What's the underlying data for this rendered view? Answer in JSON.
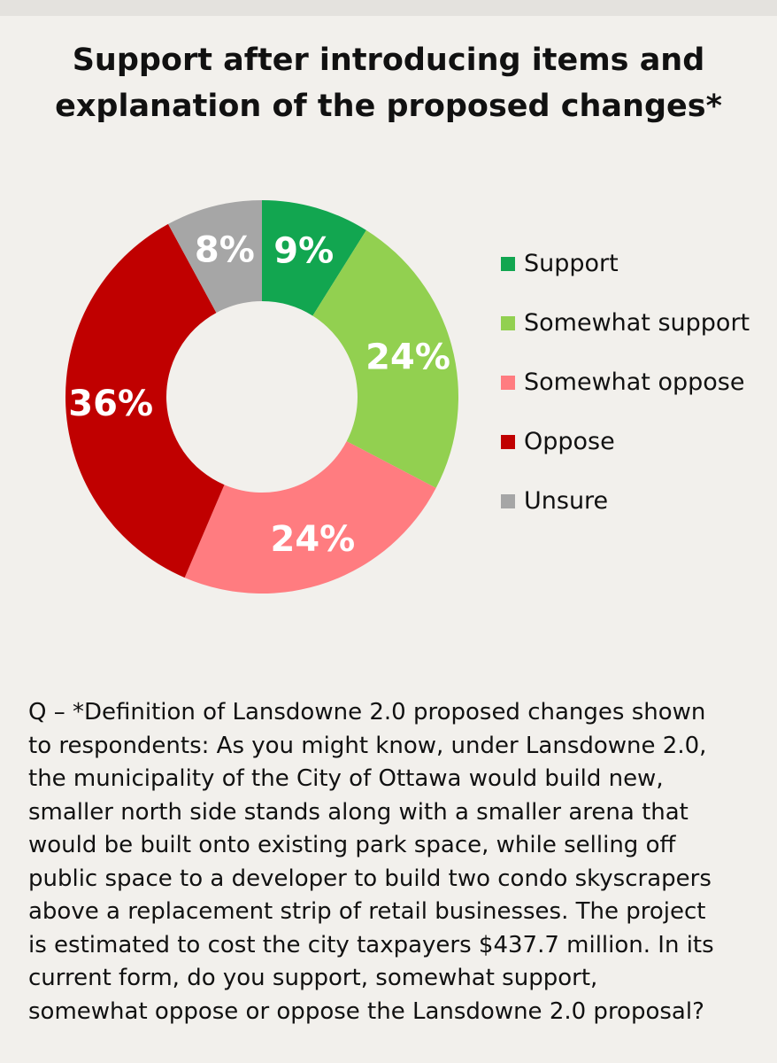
{
  "title_lines": [
    "Support after introducing items and",
    "explanation of the proposed changes*"
  ],
  "chart_data": {
    "type": "pie",
    "donut": true,
    "title": "Support after introducing items and explanation of the proposed changes*",
    "categories": [
      "Support",
      "Somewhat support",
      "Somewhat oppose",
      "Oppose",
      "Unsure"
    ],
    "values": [
      9,
      24,
      24,
      36,
      8
    ],
    "labels": [
      "9%",
      "24%",
      "24%",
      "36%",
      "8%"
    ],
    "colors": [
      "#12a650",
      "#92d050",
      "#ff7c80",
      "#c00000",
      "#a6a6a6"
    ],
    "legend_position": "right"
  },
  "question_lines": [
    "Q – *Definition of Lansdowne 2.0 proposed changes shown",
    "to respondents: As you might know, under Lansdowne 2.0,",
    "the municipality of the City of Ottawa would build new,",
    "smaller north side stands along with a smaller arena that",
    "would be built onto existing park space, while selling off",
    "public space to a developer to build two condo skyscrapers",
    "above a replacement strip of retail businesses. The project",
    "is estimated to cost the city taxpayers $437.7 million. In its",
    "current form, do you support, somewhat support,",
    "somewhat oppose or oppose the Lansdowne 2.0 proposal?"
  ]
}
